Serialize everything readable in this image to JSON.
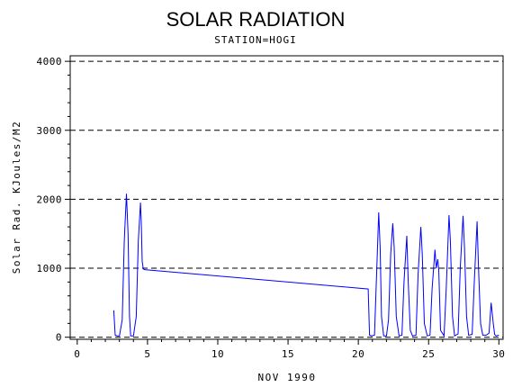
{
  "chart_data": {
    "type": "line",
    "title": "SOLAR RADIATION",
    "subtitle": "STATION=HOGI",
    "xlabel": "NOV 1990",
    "ylabel": "Solar Rad. KJoules/M2",
    "xlim": [
      -0.5,
      30.3
    ],
    "ylim": [
      -30,
      4080
    ],
    "x_ticks": [
      0,
      5,
      10,
      15,
      20,
      25,
      30
    ],
    "x_tick_labels": [
      "0",
      "5",
      "10",
      "15",
      "20",
      "25",
      "30"
    ],
    "y_ticks": [
      0,
      1000,
      2000,
      3000,
      4000
    ],
    "y_tick_labels": [
      "0",
      "1000",
      "2000",
      "3000",
      "4000"
    ],
    "grid": "horizontal dashed",
    "line_color": "#0000ff",
    "series": [
      {
        "x": [
          2.6,
          2.7,
          2.85,
          3.0,
          3.2,
          3.35,
          3.5,
          3.62,
          3.72,
          3.8,
          3.9,
          4.0,
          4.2,
          4.35,
          4.5,
          4.55,
          4.62,
          4.7,
          4.8,
          20.7,
          20.8,
          20.95,
          21.15,
          21.3,
          21.45,
          21.55,
          21.65,
          21.8,
          22.0,
          22.15,
          22.3,
          22.45,
          22.55,
          22.7,
          22.9,
          23.1,
          23.25,
          23.45,
          23.55,
          23.7,
          23.85,
          24.1,
          24.25,
          24.45,
          24.55,
          24.7,
          24.9,
          25.1,
          25.25,
          25.45,
          25.55,
          25.65,
          25.72,
          25.85,
          26.1,
          26.25,
          26.45,
          26.55,
          26.7,
          26.85,
          27.1,
          27.25,
          27.45,
          27.55,
          27.7,
          27.85,
          28.1,
          28.25,
          28.45,
          28.55,
          28.7,
          28.85,
          29.1,
          29.3,
          29.45,
          29.6,
          29.7,
          29.8,
          30.0
        ],
        "y": [
          390,
          30,
          20,
          20,
          250,
          1400,
          2080,
          1500,
          300,
          20,
          20,
          20,
          300,
          1400,
          1950,
          1700,
          1100,
          990,
          980,
          700,
          30,
          20,
          30,
          900,
          1810,
          1300,
          300,
          20,
          20,
          250,
          1200,
          1650,
          1300,
          300,
          20,
          30,
          800,
          1470,
          800,
          100,
          20,
          30,
          900,
          1600,
          1200,
          200,
          20,
          30,
          700,
          1270,
          1000,
          1130,
          980,
          100,
          20,
          700,
          1770,
          1400,
          300,
          20,
          50,
          1000,
          1760,
          1300,
          300,
          30,
          40,
          800,
          1680,
          1000,
          200,
          30,
          30,
          60,
          500,
          200,
          40,
          20,
          30
        ]
      }
    ]
  }
}
